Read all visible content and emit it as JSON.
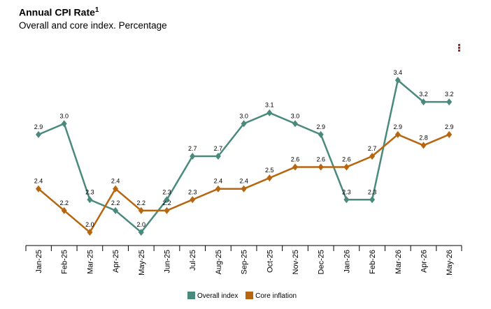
{
  "header": {
    "title": "Annual CPI Rate",
    "title_sup": "1",
    "subtitle": "Overall and core index. Percentage"
  },
  "menu_icon": "vertical-dots-icon",
  "colors": {
    "overall": "#4a8a7c",
    "core": "#b8650f",
    "axis": "#000000"
  },
  "legend": [
    {
      "key": "overall",
      "label": "Overall index"
    },
    {
      "key": "core",
      "label": "Core inflation"
    }
  ],
  "chart_data": {
    "type": "line",
    "title": "Annual CPI Rate",
    "subtitle": "Overall and core index. Percentage",
    "categories": [
      "Jan-25",
      "Feb-25",
      "Mar-25",
      "Apr-25",
      "May-25",
      "Jun-25",
      "Jul-25",
      "Aug-25",
      "Sep-25",
      "Oct-25",
      "Nov-25",
      "Dec-25",
      "Jan-26",
      "Feb-26",
      "Mar-26",
      "Apr-26",
      "May-26"
    ],
    "series": [
      {
        "name": "Overall index",
        "values": [
          2.9,
          3.0,
          2.3,
          2.2,
          2.0,
          2.3,
          2.7,
          2.7,
          3.0,
          3.1,
          3.0,
          2.9,
          2.3,
          2.3,
          3.4,
          3.2,
          3.2
        ]
      },
      {
        "name": "Core inflation",
        "values": [
          2.4,
          2.2,
          2.0,
          2.4,
          2.2,
          2.2,
          2.3,
          2.4,
          2.4,
          2.5,
          2.6,
          2.6,
          2.6,
          2.7,
          2.9,
          2.8,
          2.9
        ]
      }
    ],
    "data_labels": true,
    "grid": false,
    "legend_position": "bottom-center"
  }
}
